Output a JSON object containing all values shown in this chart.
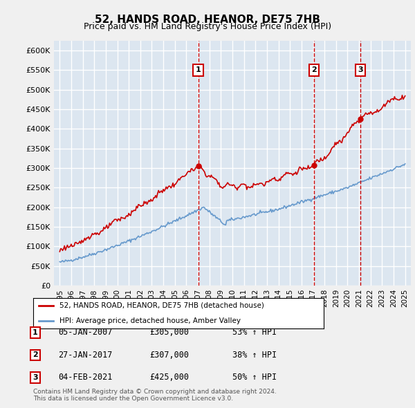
{
  "title": "52, HANDS ROAD, HEANOR, DE75 7HB",
  "subtitle": "Price paid vs. HM Land Registry's House Price Index (HPI)",
  "ylabel": "",
  "bg_color": "#dce6f0",
  "plot_bg_color": "#dce6f0",
  "grid_color": "#ffffff",
  "red_line_color": "#cc0000",
  "blue_line_color": "#6699cc",
  "ylim_min": 0,
  "ylim_max": 625000,
  "yticks": [
    0,
    50000,
    100000,
    150000,
    200000,
    250000,
    300000,
    350000,
    400000,
    450000,
    500000,
    550000,
    600000
  ],
  "ytick_labels": [
    "£0",
    "£50K",
    "£100K",
    "£150K",
    "£200K",
    "£250K",
    "£300K",
    "£350K",
    "£400K",
    "£450K",
    "£500K",
    "£550K",
    "£600K"
  ],
  "xlim_min": 1994.5,
  "xlim_max": 2025.5,
  "xtick_labels": [
    "1995",
    "1996",
    "1997",
    "1998",
    "1999",
    "2000",
    "2001",
    "2002",
    "2003",
    "2004",
    "2005",
    "2006",
    "2007",
    "2008",
    "2009",
    "2010",
    "2011",
    "2012",
    "2013",
    "2014",
    "2015",
    "2016",
    "2017",
    "2018",
    "2019",
    "2020",
    "2021",
    "2022",
    "2023",
    "2024",
    "2025"
  ],
  "sale_dates": [
    2007.03,
    2017.08,
    2021.1
  ],
  "sale_prices": [
    305000,
    307000,
    425000
  ],
  "sale_labels": [
    "1",
    "2",
    "3"
  ],
  "footnote": "Contains HM Land Registry data © Crown copyright and database right 2024.\nThis data is licensed under the Open Government Licence v3.0.",
  "legend_red": "52, HANDS ROAD, HEANOR, DE75 7HB (detached house)",
  "legend_blue": "HPI: Average price, detached house, Amber Valley",
  "table_rows": [
    [
      "1",
      "05-JAN-2007",
      "£305,000",
      "53% ↑ HPI"
    ],
    [
      "2",
      "27-JAN-2017",
      "£307,000",
      "38% ↑ HPI"
    ],
    [
      "3",
      "04-FEB-2021",
      "£425,000",
      "50% ↑ HPI"
    ]
  ]
}
